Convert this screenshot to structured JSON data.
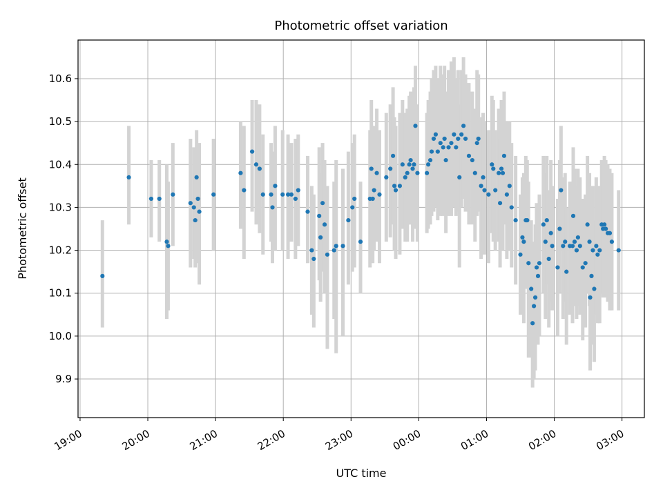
{
  "chart_data": {
    "type": "scatter",
    "title": "Photometric offset variation",
    "xlabel": "UTC time",
    "ylabel": "Photometric offset",
    "grid": true,
    "x_axis": {
      "unit": "hours since 19:00 UTC",
      "range": [
        -0.03,
        8.33
      ],
      "ticks": [
        0,
        1,
        2,
        3,
        4,
        5,
        6,
        7,
        8
      ],
      "tick_labels": [
        "19:00",
        "20:00",
        "21:00",
        "22:00",
        "23:00",
        "00:00",
        "01:00",
        "02:00",
        "03:00"
      ]
    },
    "y_axis": {
      "range": [
        9.81,
        10.69
      ],
      "ticks": [
        9.9,
        10.0,
        10.1,
        10.2,
        10.3,
        10.4,
        10.5,
        10.6
      ],
      "tick_labels": [
        "9.9",
        "10.0",
        "10.1",
        "10.2",
        "10.3",
        "10.4",
        "10.5",
        "10.6"
      ]
    },
    "colors": {
      "points": "#1f77b4",
      "error_bars": "#d3d3d3",
      "grid": "#b0b0b0"
    },
    "series": [
      {
        "points": [
          [
            0.33,
            10.14,
            10.02,
            10.27
          ],
          [
            0.72,
            10.37,
            10.26,
            10.49
          ],
          [
            1.05,
            10.32,
            10.23,
            10.41
          ],
          [
            1.17,
            10.32,
            10.22,
            10.41
          ],
          [
            1.28,
            10.22,
            10.04,
            10.4
          ],
          [
            1.3,
            10.21,
            10.06,
            10.36
          ],
          [
            1.37,
            10.33,
            10.21,
            10.45
          ],
          [
            1.63,
            10.31,
            10.16,
            10.46
          ],
          [
            1.68,
            10.3,
            10.18,
            10.44
          ],
          [
            1.7,
            10.27,
            10.16,
            10.38
          ],
          [
            1.72,
            10.37,
            10.2,
            10.48
          ],
          [
            1.74,
            10.32,
            10.17,
            10.44
          ],
          [
            1.76,
            10.29,
            10.12,
            10.45
          ],
          [
            1.97,
            10.33,
            10.2,
            10.46
          ],
          [
            2.37,
            10.38,
            10.25,
            10.5
          ],
          [
            2.42,
            10.34,
            10.18,
            10.49
          ],
          [
            2.54,
            10.43,
            10.29,
            10.55
          ],
          [
            2.6,
            10.4,
            10.26,
            10.55
          ],
          [
            2.65,
            10.39,
            10.24,
            10.54
          ],
          [
            2.7,
            10.33,
            10.19,
            10.47
          ],
          [
            2.82,
            10.33,
            10.22,
            10.45
          ],
          [
            2.84,
            10.3,
            10.17,
            10.43
          ],
          [
            2.88,
            10.35,
            10.2,
            10.49
          ],
          [
            2.99,
            10.33,
            10.2,
            10.48
          ],
          [
            3.07,
            10.33,
            10.18,
            10.47
          ],
          [
            3.12,
            10.33,
            10.22,
            10.45
          ],
          [
            3.18,
            10.32,
            10.18,
            10.46
          ],
          [
            3.22,
            10.34,
            10.21,
            10.47
          ],
          [
            3.36,
            10.29,
            10.17,
            10.42
          ],
          [
            3.42,
            10.2,
            10.05,
            10.35
          ],
          [
            3.45,
            10.18,
            10.02,
            10.33
          ],
          [
            3.53,
            10.28,
            10.13,
            10.44
          ],
          [
            3.55,
            10.23,
            10.08,
            10.38
          ],
          [
            3.58,
            10.31,
            10.15,
            10.45
          ],
          [
            3.61,
            10.26,
            10.1,
            10.41
          ],
          [
            3.65,
            10.19,
            9.97,
            10.35
          ],
          [
            3.75,
            10.2,
            10.04,
            10.36
          ],
          [
            3.78,
            10.21,
            9.96,
            10.41
          ],
          [
            3.88,
            10.21,
            10.0,
            10.39
          ],
          [
            3.96,
            10.27,
            10.12,
            10.43
          ],
          [
            4.02,
            10.3,
            10.15,
            10.45
          ],
          [
            4.05,
            10.32,
            10.16,
            10.47
          ],
          [
            4.14,
            10.22,
            10.1,
            10.36
          ],
          [
            4.28,
            10.32,
            10.16,
            10.48
          ],
          [
            4.3,
            10.39,
            10.22,
            10.55
          ],
          [
            4.32,
            10.32,
            10.17,
            10.48
          ],
          [
            4.34,
            10.34,
            10.2,
            10.49
          ],
          [
            4.38,
            10.38,
            10.22,
            10.53
          ],
          [
            4.42,
            10.33,
            10.17,
            10.48
          ],
          [
            4.52,
            10.37,
            10.22,
            10.52
          ],
          [
            4.58,
            10.39,
            10.23,
            10.54
          ],
          [
            4.62,
            10.42,
            10.26,
            10.58
          ],
          [
            4.64,
            10.35,
            10.2,
            10.51
          ],
          [
            4.66,
            10.34,
            10.18,
            10.49
          ],
          [
            4.72,
            10.35,
            10.19,
            10.52
          ],
          [
            4.76,
            10.4,
            10.25,
            10.55
          ],
          [
            4.8,
            10.37,
            10.22,
            10.52
          ],
          [
            4.83,
            10.38,
            10.22,
            10.53
          ],
          [
            4.86,
            10.4,
            10.26,
            10.56
          ],
          [
            4.88,
            10.41,
            10.26,
            10.57
          ],
          [
            4.91,
            10.39,
            10.22,
            10.56
          ],
          [
            4.93,
            10.4,
            10.25,
            10.58
          ],
          [
            4.95,
            10.49,
            10.31,
            10.63
          ],
          [
            4.98,
            10.38,
            10.22,
            10.54
          ],
          [
            5.12,
            10.38,
            10.24,
            10.52
          ],
          [
            5.14,
            10.4,
            10.25,
            10.55
          ],
          [
            5.17,
            10.41,
            10.26,
            10.57
          ],
          [
            5.19,
            10.43,
            10.28,
            10.6
          ],
          [
            5.22,
            10.46,
            10.29,
            10.62
          ],
          [
            5.25,
            10.47,
            10.3,
            10.63
          ],
          [
            5.28,
            10.43,
            10.27,
            10.6
          ],
          [
            5.32,
            10.45,
            10.28,
            10.63
          ],
          [
            5.36,
            10.44,
            10.28,
            10.61
          ],
          [
            5.38,
            10.46,
            10.3,
            10.63
          ],
          [
            5.4,
            10.41,
            10.24,
            10.57
          ],
          [
            5.44,
            10.44,
            10.28,
            10.62
          ],
          [
            5.48,
            10.45,
            10.28,
            10.64
          ],
          [
            5.52,
            10.47,
            10.3,
            10.65
          ],
          [
            5.55,
            10.44,
            10.28,
            10.6
          ],
          [
            5.58,
            10.46,
            10.29,
            10.62
          ],
          [
            5.6,
            10.37,
            10.16,
            10.54
          ],
          [
            5.63,
            10.47,
            10.3,
            10.62
          ],
          [
            5.66,
            10.49,
            10.32,
            10.65
          ],
          [
            5.69,
            10.46,
            10.29,
            10.61
          ],
          [
            5.74,
            10.42,
            10.26,
            10.59
          ],
          [
            5.79,
            10.41,
            10.26,
            10.57
          ],
          [
            5.83,
            10.38,
            10.22,
            10.53
          ],
          [
            5.86,
            10.45,
            10.28,
            10.62
          ],
          [
            5.88,
            10.46,
            10.29,
            10.61
          ],
          [
            5.92,
            10.35,
            10.18,
            10.51
          ],
          [
            5.95,
            10.37,
            10.22,
            10.52
          ],
          [
            5.97,
            10.34,
            10.19,
            10.5
          ],
          [
            6.03,
            10.33,
            10.17,
            10.48
          ],
          [
            6.08,
            10.4,
            10.24,
            10.56
          ],
          [
            6.1,
            10.39,
            10.22,
            10.55
          ],
          [
            6.13,
            10.34,
            10.2,
            10.48
          ],
          [
            6.18,
            10.38,
            10.22,
            10.53
          ],
          [
            6.2,
            10.31,
            10.16,
            10.46
          ],
          [
            6.22,
            10.39,
            10.22,
            10.55
          ],
          [
            6.24,
            10.38,
            10.2,
            10.54
          ],
          [
            6.26,
            10.42,
            10.26,
            10.57
          ],
          [
            6.3,
            10.33,
            10.18,
            10.5
          ],
          [
            6.34,
            10.35,
            10.2,
            10.5
          ],
          [
            6.37,
            10.3,
            10.16,
            10.45
          ],
          [
            6.43,
            10.27,
            10.12,
            10.42
          ],
          [
            6.5,
            10.19,
            10.05,
            10.33
          ],
          [
            6.53,
            10.23,
            10.09,
            10.37
          ],
          [
            6.55,
            10.22,
            10.03,
            10.38
          ],
          [
            6.58,
            10.27,
            10.11,
            10.42
          ],
          [
            6.6,
            10.27,
            10.12,
            10.41
          ],
          [
            6.62,
            10.17,
            9.95,
            10.36
          ],
          [
            6.66,
            10.11,
            9.95,
            10.27
          ],
          [
            6.68,
            10.03,
            9.88,
            10.19
          ],
          [
            6.7,
            10.07,
            9.9,
            10.22
          ],
          [
            6.72,
            10.09,
            9.92,
            10.26
          ],
          [
            6.74,
            10.16,
            10.0,
            10.31
          ],
          [
            6.76,
            10.14,
            9.98,
            10.3
          ],
          [
            6.78,
            10.17,
            10.0,
            10.33
          ],
          [
            6.84,
            10.26,
            10.1,
            10.42
          ],
          [
            6.87,
            10.22,
            10.04,
            10.38
          ],
          [
            6.89,
            10.27,
            10.12,
            10.42
          ],
          [
            6.92,
            10.18,
            10.02,
            10.34
          ],
          [
            6.95,
            10.24,
            10.08,
            10.41
          ],
          [
            6.97,
            10.21,
            10.06,
            10.35
          ],
          [
            7.05,
            10.16,
            10.0,
            10.32
          ],
          [
            7.08,
            10.25,
            10.1,
            10.41
          ],
          [
            7.1,
            10.34,
            10.2,
            10.49
          ],
          [
            7.13,
            10.21,
            10.04,
            10.37
          ],
          [
            7.16,
            10.22,
            10.08,
            10.38
          ],
          [
            7.18,
            10.15,
            9.98,
            10.3
          ],
          [
            7.23,
            10.21,
            10.05,
            10.36
          ],
          [
            7.27,
            10.21,
            10.03,
            10.36
          ],
          [
            7.28,
            10.28,
            10.13,
            10.44
          ],
          [
            7.3,
            10.22,
            10.07,
            10.39
          ],
          [
            7.33,
            10.2,
            10.04,
            10.35
          ],
          [
            7.35,
            10.23,
            10.07,
            10.39
          ],
          [
            7.38,
            10.21,
            10.05,
            10.37
          ],
          [
            7.42,
            10.16,
            9.99,
            10.32
          ],
          [
            7.46,
            10.17,
            10.02,
            10.33
          ],
          [
            7.49,
            10.26,
            10.1,
            10.42
          ],
          [
            7.52,
            10.22,
            10.07,
            10.38
          ],
          [
            7.53,
            10.09,
            9.92,
            10.24
          ],
          [
            7.55,
            10.14,
            9.98,
            10.3
          ],
          [
            7.57,
            10.2,
            10.02,
            10.35
          ],
          [
            7.59,
            10.11,
            9.94,
            10.27
          ],
          [
            7.62,
            10.21,
            10.05,
            10.37
          ],
          [
            7.64,
            10.19,
            10.03,
            10.35
          ],
          [
            7.67,
            10.2,
            10.03,
            10.35
          ],
          [
            7.7,
            10.26,
            10.1,
            10.41
          ],
          [
            7.72,
            10.25,
            10.09,
            10.4
          ],
          [
            7.74,
            10.26,
            10.1,
            10.42
          ],
          [
            7.76,
            10.25,
            10.09,
            10.41
          ],
          [
            7.79,
            10.24,
            10.08,
            10.4
          ],
          [
            7.82,
            10.24,
            10.06,
            10.39
          ],
          [
            7.85,
            10.22,
            10.06,
            10.38
          ],
          [
            7.95,
            10.2,
            10.06,
            10.34
          ]
        ]
      }
    ]
  }
}
